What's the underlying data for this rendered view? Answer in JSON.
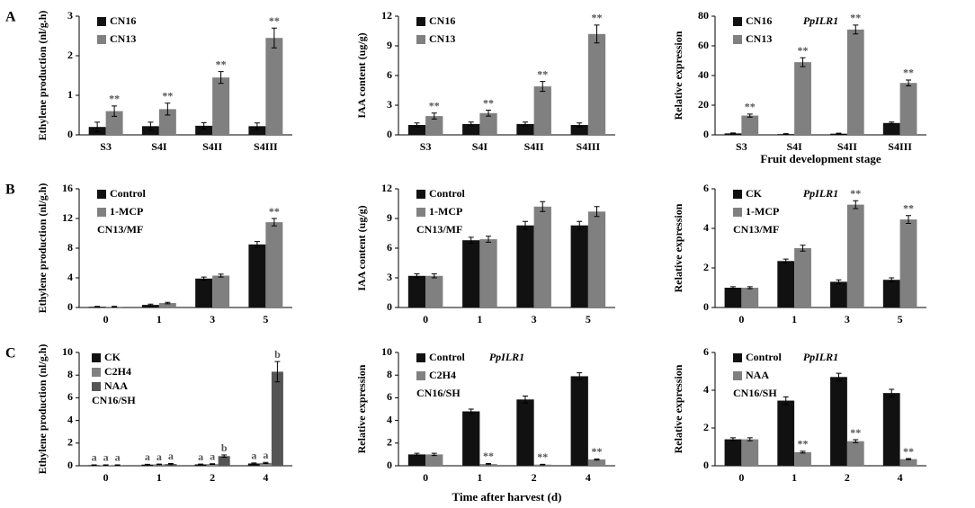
{
  "panel_labels": [
    "A",
    "B",
    "C"
  ],
  "chart_data": [
    {
      "type": "bar",
      "ylabel": "Ethylene production (nl/g.h)",
      "categories": [
        "S3",
        "S4I",
        "S4II",
        "S4III"
      ],
      "ylim": [
        0,
        3
      ],
      "yticks": [
        0,
        1,
        2,
        3
      ],
      "legend": "upper left",
      "series": [
        {
          "name": "CN16",
          "color": "#111111",
          "values": [
            0.2,
            0.22,
            0.23,
            0.22
          ],
          "errors": [
            0.12,
            0.1,
            0.08,
            0.08
          ],
          "significance": [
            null,
            null,
            null,
            null
          ]
        },
        {
          "name": "CN13",
          "color": "#808080",
          "values": [
            0.6,
            0.65,
            1.45,
            2.45
          ],
          "errors": [
            0.13,
            0.15,
            0.15,
            0.25
          ],
          "significance": [
            "**",
            "**",
            "**",
            "**"
          ]
        }
      ]
    },
    {
      "type": "bar",
      "ylabel": "IAA content (ug/g)",
      "categories": [
        "S3",
        "S4I",
        "S4II",
        "S4III"
      ],
      "ylim": [
        0,
        12
      ],
      "yticks": [
        0,
        3,
        6,
        9,
        12
      ],
      "legend": "upper left",
      "series": [
        {
          "name": "CN16",
          "color": "#111111",
          "values": [
            1.0,
            1.1,
            1.1,
            1.0
          ],
          "errors": [
            0.2,
            0.2,
            0.2,
            0.2
          ],
          "significance": [
            null,
            null,
            null,
            null
          ]
        },
        {
          "name": "CN13",
          "color": "#808080",
          "values": [
            1.9,
            2.2,
            4.9,
            10.2
          ],
          "errors": [
            0.3,
            0.3,
            0.5,
            0.9
          ],
          "significance": [
            "**",
            "**",
            "**",
            "**"
          ]
        }
      ]
    },
    {
      "type": "bar",
      "ylabel": "Relative expression",
      "xlabel": "Fruit development stage",
      "categories": [
        "S3",
        "S4I",
        "S4II",
        "S4III"
      ],
      "ylim": [
        0,
        80
      ],
      "yticks": [
        0,
        20,
        40,
        60,
        80
      ],
      "legend": "upper left",
      "annotations": [
        {
          "text": "PpILR1",
          "italic": true
        }
      ],
      "series": [
        {
          "name": "CN16",
          "color": "#111111",
          "values": [
            1,
            0.5,
            0.8,
            8
          ],
          "errors": [
            0.3,
            0.3,
            0.3,
            0.6
          ],
          "significance": [
            null,
            null,
            null,
            null
          ]
        },
        {
          "name": "CN13",
          "color": "#808080",
          "values": [
            13,
            49,
            71,
            35
          ],
          "errors": [
            1,
            3,
            3,
            2
          ],
          "significance": [
            "**",
            "**",
            "**",
            "**"
          ]
        }
      ]
    },
    {
      "type": "bar",
      "ylabel": "Ethylene production (nl/g.h)",
      "categories": [
        "0",
        "1",
        "3",
        "5"
      ],
      "ylim": [
        0,
        16
      ],
      "yticks": [
        0,
        4,
        8,
        12,
        16
      ],
      "legend": "upper left",
      "annotations": [
        {
          "text": "CN13/MF",
          "italic": false
        }
      ],
      "series": [
        {
          "name": "Control",
          "color": "#111111",
          "values": [
            0.1,
            0.35,
            3.9,
            8.5
          ],
          "errors": [
            0.05,
            0.1,
            0.2,
            0.4
          ],
          "significance": [
            null,
            null,
            null,
            null
          ]
        },
        {
          "name": "1-MCP",
          "color": "#808080",
          "values": [
            0.1,
            0.6,
            4.3,
            11.5
          ],
          "errors": [
            0.05,
            0.1,
            0.2,
            0.5
          ],
          "significance": [
            null,
            null,
            null,
            "**"
          ]
        }
      ]
    },
    {
      "type": "bar",
      "ylabel": "IAA content (ug/g)",
      "categories": [
        "0",
        "1",
        "3",
        "5"
      ],
      "ylim": [
        0,
        12
      ],
      "yticks": [
        0,
        3,
        6,
        9,
        12
      ],
      "legend": "upper left",
      "annotations": [
        {
          "text": "CN13/MF",
          "italic": false
        }
      ],
      "series": [
        {
          "name": "Control",
          "color": "#111111",
          "values": [
            3.2,
            6.8,
            8.3,
            8.3
          ],
          "errors": [
            0.2,
            0.3,
            0.4,
            0.4
          ],
          "significance": [
            null,
            null,
            null,
            null
          ]
        },
        {
          "name": "1-MCP",
          "color": "#808080",
          "values": [
            3.2,
            6.9,
            10.2,
            9.7
          ],
          "errors": [
            0.2,
            0.3,
            0.5,
            0.5
          ],
          "significance": [
            null,
            null,
            null,
            null
          ]
        }
      ]
    },
    {
      "type": "bar",
      "ylabel": "Relative expression",
      "categories": [
        "0",
        "1",
        "3",
        "5"
      ],
      "ylim": [
        0,
        6
      ],
      "yticks": [
        0,
        2,
        4,
        6
      ],
      "legend": "upper left",
      "annotations": [
        {
          "text": "PpILR1",
          "italic": true
        },
        {
          "text": "CN13/MF",
          "italic": false
        }
      ],
      "series": [
        {
          "name": "CK",
          "color": "#111111",
          "values": [
            1.0,
            2.35,
            1.3,
            1.4
          ],
          "errors": [
            0.05,
            0.1,
            0.1,
            0.1
          ],
          "significance": [
            null,
            null,
            null,
            null
          ]
        },
        {
          "name": "1-MCP",
          "color": "#808080",
          "values": [
            1.0,
            3.0,
            5.2,
            4.45
          ],
          "errors": [
            0.05,
            0.15,
            0.2,
            0.2
          ],
          "significance": [
            null,
            null,
            "**",
            "**"
          ]
        }
      ]
    },
    {
      "type": "bar",
      "ylabel": "Ethylene production (nl/g.h)",
      "categories": [
        "0",
        "1",
        "2",
        "4"
      ],
      "ylim": [
        0,
        10
      ],
      "yticks": [
        0,
        2,
        4,
        6,
        8,
        10
      ],
      "legend": "upper left",
      "annotations": [
        {
          "text": "CN16/SH",
          "italic": false
        }
      ],
      "series": [
        {
          "name": "CK",
          "color": "#111111",
          "values": [
            0.05,
            0.1,
            0.12,
            0.2
          ],
          "errors": [
            0.03,
            0.03,
            0.03,
            0.05
          ],
          "significance": [
            "a",
            "a",
            "a",
            "a"
          ]
        },
        {
          "name": "C2H4",
          "color": "#808080",
          "values": [
            0.05,
            0.12,
            0.15,
            0.25
          ],
          "errors": [
            0.03,
            0.03,
            0.03,
            0.05
          ],
          "significance": [
            "a",
            "a",
            "a",
            "a"
          ]
        },
        {
          "name": "NAA",
          "color": "#555555",
          "values": [
            0.05,
            0.15,
            0.85,
            8.3
          ],
          "errors": [
            0.03,
            0.05,
            0.1,
            0.9
          ],
          "significance": [
            "a",
            "a",
            "b",
            "b"
          ]
        }
      ]
    },
    {
      "type": "bar",
      "ylabel": "Relative expression",
      "xlabel": "Time after harvest (d)",
      "categories": [
        "0",
        "1",
        "2",
        "4"
      ],
      "ylim": [
        0,
        10
      ],
      "yticks": [
        0,
        2,
        4,
        6,
        8,
        10
      ],
      "legend": "upper left",
      "annotations": [
        {
          "text": "PpILR1",
          "italic": true
        },
        {
          "text": "CN16/SH",
          "italic": false
        }
      ],
      "series": [
        {
          "name": "Control",
          "color": "#111111",
          "values": [
            1.0,
            4.8,
            5.85,
            7.9
          ],
          "errors": [
            0.1,
            0.2,
            0.3,
            0.3
          ],
          "significance": [
            null,
            null,
            null,
            null
          ]
        },
        {
          "name": "C2H4",
          "color": "#808080",
          "values": [
            1.0,
            0.15,
            0.1,
            0.55
          ],
          "errors": [
            0.1,
            0.05,
            0.03,
            0.05
          ],
          "significance": [
            null,
            "**",
            "**",
            "**"
          ]
        }
      ]
    },
    {
      "type": "bar",
      "ylabel": "Relative expression",
      "categories": [
        "0",
        "1",
        "2",
        "4"
      ],
      "ylim": [
        0,
        6
      ],
      "yticks": [
        0,
        2,
        4,
        6
      ],
      "legend": "upper left",
      "annotations": [
        {
          "text": "PpILR1",
          "italic": true
        },
        {
          "text": "CN16/SH",
          "italic": false
        }
      ],
      "series": [
        {
          "name": "Control",
          "color": "#111111",
          "values": [
            1.4,
            3.45,
            4.7,
            3.85
          ],
          "errors": [
            0.08,
            0.2,
            0.2,
            0.2
          ],
          "significance": [
            null,
            null,
            null,
            null
          ]
        },
        {
          "name": "NAA",
          "color": "#808080",
          "values": [
            1.4,
            0.72,
            1.3,
            0.35
          ],
          "errors": [
            0.08,
            0.05,
            0.08,
            0.03
          ],
          "significance": [
            null,
            "**",
            "**",
            "**"
          ]
        }
      ]
    }
  ]
}
